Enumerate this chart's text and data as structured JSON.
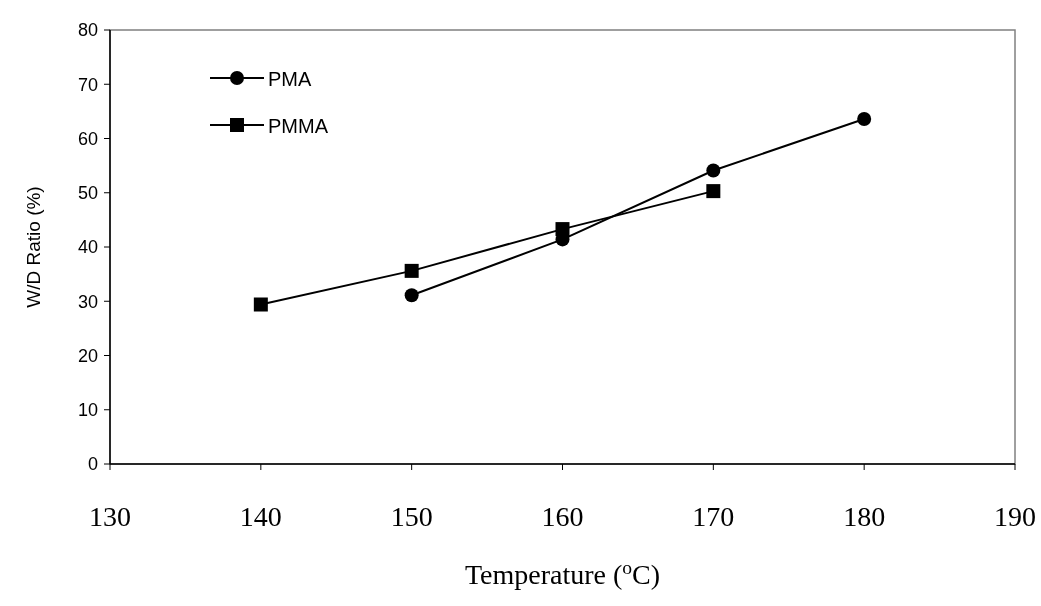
{
  "chart_data": {
    "type": "line",
    "xlabel": "Temperature ($^{o}$C)",
    "ylabel": "W/D Ratio (%)",
    "xlim": [
      130,
      190
    ],
    "xticks": [
      130,
      140,
      150,
      160,
      170,
      180,
      190
    ],
    "ylim": [
      0,
      80
    ],
    "yticks": [
      0,
      10,
      20,
      30,
      40,
      50,
      60,
      70,
      80
    ],
    "grid": false,
    "legend": "top left",
    "line_style": "solid",
    "series": [
      {
        "name": "PMA",
        "color": "#000000",
        "marker": "circle",
        "x": [
          150,
          160,
          170,
          180
        ],
        "values": [
          31.1,
          41.4,
          54.1,
          63.6
        ]
      },
      {
        "name": "PMMA",
        "color": "#000000",
        "marker": "square",
        "x": [
          140,
          150,
          160,
          170
        ],
        "values": [
          29.4,
          35.6,
          43.3,
          50.3
        ]
      }
    ]
  }
}
